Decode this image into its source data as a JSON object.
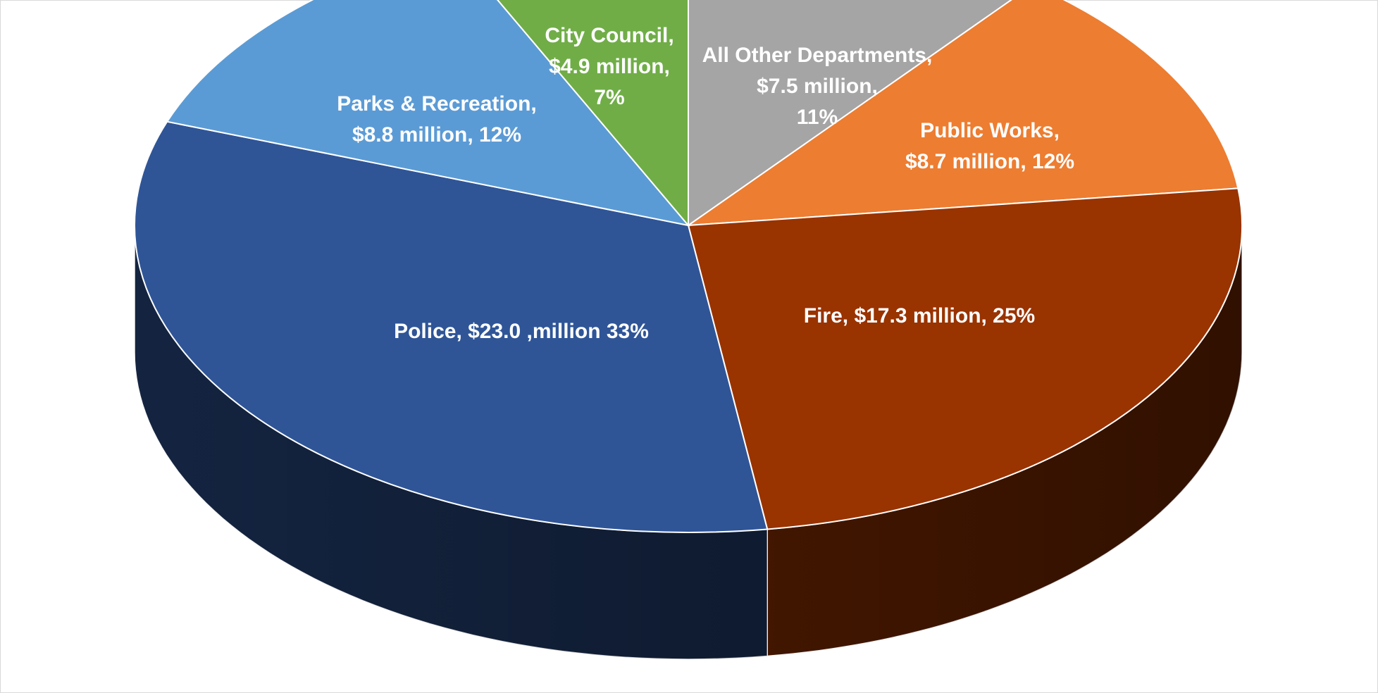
{
  "chart_data": {
    "type": "pie",
    "style": "3d",
    "title": "",
    "slices": [
      {
        "name": "All Other Departments",
        "value": 7.5,
        "percent": 11,
        "color": "#a5a5a5",
        "label_lines": [
          "All Other Departments,",
          "$7.5 million,",
          "11%"
        ]
      },
      {
        "name": "Public Works",
        "value": 8.7,
        "percent": 12,
        "color": "#ed7d31",
        "label_lines": [
          "Public Works,",
          "$8.7 million, 12%"
        ]
      },
      {
        "name": "Fire",
        "value": 17.3,
        "percent": 25,
        "color": "#993300",
        "label_lines": [
          "Fire,  $17.3 million, 25%"
        ]
      },
      {
        "name": "Police",
        "value": 23.0,
        "percent": 33,
        "color": "#2f5597",
        "label_lines": [
          "Police,  $23.0 ,million 33%"
        ]
      },
      {
        "name": "Parks & Recreation",
        "value": 8.8,
        "percent": 12,
        "color": "#5b9bd5",
        "label_lines": [
          "Parks & Recreation,",
          "$8.8 million, 12%"
        ]
      },
      {
        "name": "City Council",
        "value": 4.9,
        "percent": 7,
        "color": "#70ad47",
        "label_lines": [
          "City Council,",
          "$4.9 million,",
          "7%"
        ]
      }
    ]
  }
}
